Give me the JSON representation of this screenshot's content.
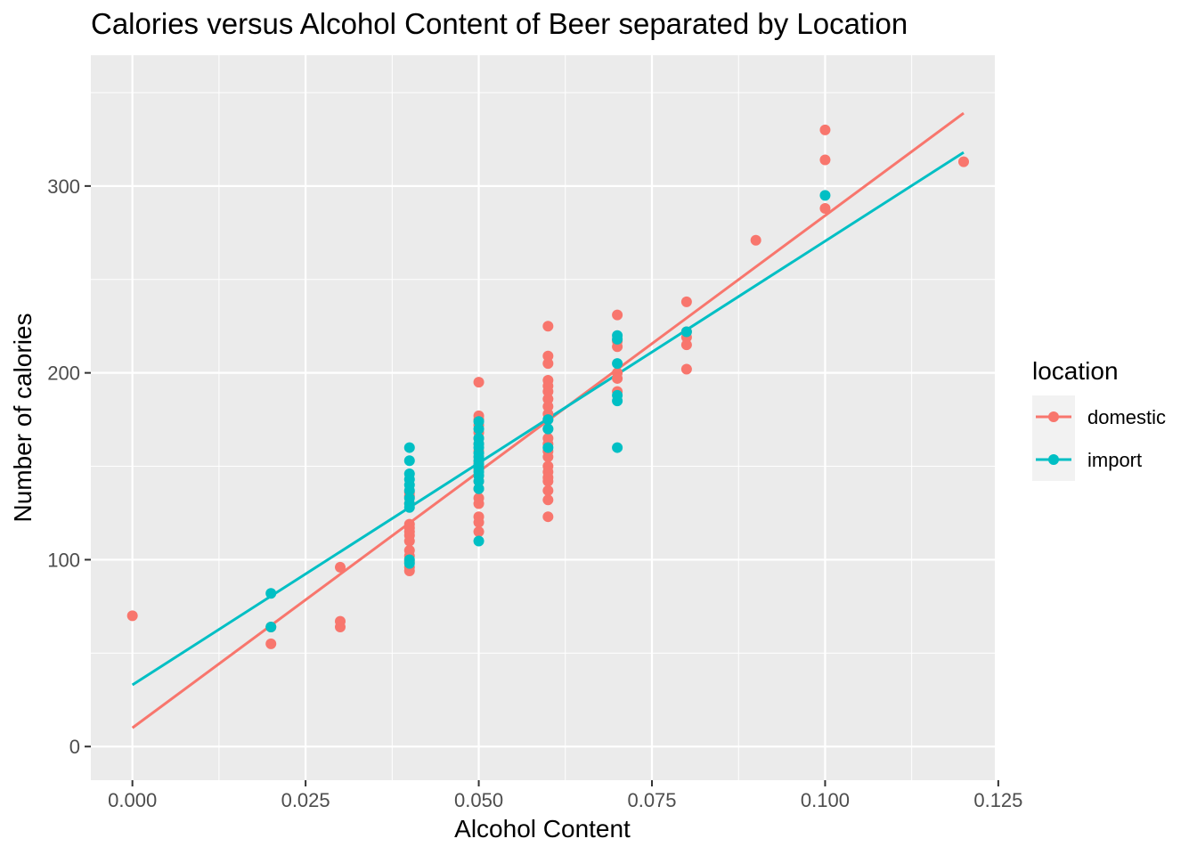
{
  "chart_data": {
    "type": "scatter",
    "title": "Calories versus Alcohol Content of Beer separated by Location",
    "xlabel": "Alcohol Content",
    "ylabel": "Number of calories",
    "xlim": [
      -0.006,
      0.1245
    ],
    "ylim": [
      -18,
      370
    ],
    "x_ticks": [
      0.0,
      0.025,
      0.05,
      0.075,
      0.1,
      0.125
    ],
    "x_tick_labels": [
      "0.000",
      "0.025",
      "0.050",
      "0.075",
      "0.100",
      "0.125"
    ],
    "y_ticks": [
      0,
      100,
      200,
      300
    ],
    "y_tick_labels": [
      "0",
      "100",
      "200",
      "300"
    ],
    "grid": true,
    "legend": {
      "title": "location",
      "position": "right"
    },
    "colors": {
      "domestic": "#F8766D",
      "import": "#00BFC4",
      "panel": "#EBEBEB"
    },
    "series": [
      {
        "name": "domestic",
        "color": "#F8766D",
        "points": [
          [
            0.0,
            70
          ],
          [
            0.02,
            64
          ],
          [
            0.02,
            55
          ],
          [
            0.03,
            96
          ],
          [
            0.03,
            67
          ],
          [
            0.03,
            64
          ],
          [
            0.04,
            136
          ],
          [
            0.04,
            134
          ],
          [
            0.04,
            130
          ],
          [
            0.04,
            119
          ],
          [
            0.04,
            117
          ],
          [
            0.04,
            115
          ],
          [
            0.04,
            113
          ],
          [
            0.04,
            110
          ],
          [
            0.04,
            105
          ],
          [
            0.04,
            102
          ],
          [
            0.04,
            99
          ],
          [
            0.04,
            96
          ],
          [
            0.04,
            94
          ],
          [
            0.05,
            195
          ],
          [
            0.05,
            177
          ],
          [
            0.05,
            175
          ],
          [
            0.05,
            172
          ],
          [
            0.05,
            168
          ],
          [
            0.05,
            165
          ],
          [
            0.05,
            162
          ],
          [
            0.05,
            158
          ],
          [
            0.05,
            155
          ],
          [
            0.05,
            152
          ],
          [
            0.05,
            148
          ],
          [
            0.05,
            145
          ],
          [
            0.05,
            142
          ],
          [
            0.05,
            138
          ],
          [
            0.05,
            133
          ],
          [
            0.05,
            130
          ],
          [
            0.05,
            123
          ],
          [
            0.05,
            120
          ],
          [
            0.05,
            115
          ],
          [
            0.06,
            225
          ],
          [
            0.06,
            209
          ],
          [
            0.06,
            205
          ],
          [
            0.06,
            196
          ],
          [
            0.06,
            193
          ],
          [
            0.06,
            190
          ],
          [
            0.06,
            186
          ],
          [
            0.06,
            182
          ],
          [
            0.06,
            178
          ],
          [
            0.06,
            175
          ],
          [
            0.06,
            170
          ],
          [
            0.06,
            165
          ],
          [
            0.06,
            162
          ],
          [
            0.06,
            158
          ],
          [
            0.06,
            155
          ],
          [
            0.06,
            150
          ],
          [
            0.06,
            147
          ],
          [
            0.06,
            144
          ],
          [
            0.06,
            142
          ],
          [
            0.06,
            137
          ],
          [
            0.06,
            132
          ],
          [
            0.06,
            123
          ],
          [
            0.07,
            231
          ],
          [
            0.07,
            217
          ],
          [
            0.07,
            214
          ],
          [
            0.07,
            200
          ],
          [
            0.07,
            197
          ],
          [
            0.07,
            190
          ],
          [
            0.08,
            238
          ],
          [
            0.08,
            222
          ],
          [
            0.08,
            219
          ],
          [
            0.08,
            215
          ],
          [
            0.08,
            202
          ],
          [
            0.09,
            271
          ],
          [
            0.1,
            330
          ],
          [
            0.1,
            314
          ],
          [
            0.1,
            288
          ],
          [
            0.12,
            313
          ]
        ],
        "fit": {
          "x": [
            0.0,
            0.12
          ],
          "y": [
            10,
            339
          ]
        }
      },
      {
        "name": "import",
        "color": "#00BFC4",
        "points": [
          [
            0.02,
            82
          ],
          [
            0.02,
            64
          ],
          [
            0.04,
            160
          ],
          [
            0.04,
            153
          ],
          [
            0.04,
            146
          ],
          [
            0.04,
            143
          ],
          [
            0.04,
            140
          ],
          [
            0.04,
            137
          ],
          [
            0.04,
            133
          ],
          [
            0.04,
            130
          ],
          [
            0.04,
            128
          ],
          [
            0.04,
            100
          ],
          [
            0.04,
            98
          ],
          [
            0.05,
            174
          ],
          [
            0.05,
            170
          ],
          [
            0.05,
            165
          ],
          [
            0.05,
            162
          ],
          [
            0.05,
            160
          ],
          [
            0.05,
            157
          ],
          [
            0.05,
            155
          ],
          [
            0.05,
            153
          ],
          [
            0.05,
            151
          ],
          [
            0.05,
            149
          ],
          [
            0.05,
            147
          ],
          [
            0.05,
            145
          ],
          [
            0.05,
            142
          ],
          [
            0.05,
            138
          ],
          [
            0.05,
            110
          ],
          [
            0.06,
            175
          ],
          [
            0.06,
            170
          ],
          [
            0.06,
            160
          ],
          [
            0.07,
            220
          ],
          [
            0.07,
            218
          ],
          [
            0.07,
            205
          ],
          [
            0.07,
            188
          ],
          [
            0.07,
            185
          ],
          [
            0.07,
            160
          ],
          [
            0.08,
            222
          ],
          [
            0.1,
            295
          ]
        ],
        "fit": {
          "x": [
            0.0,
            0.12
          ],
          "y": [
            33,
            318
          ]
        }
      }
    ]
  }
}
